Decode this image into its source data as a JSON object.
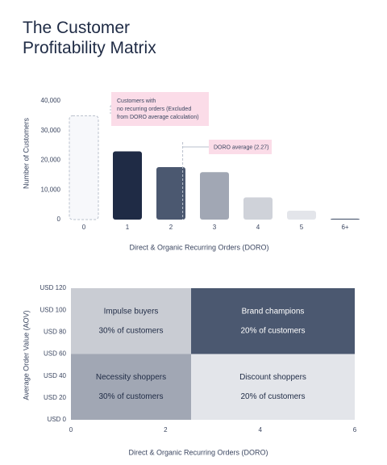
{
  "title": "The Customer Profitability Matrix",
  "chart_data": [
    {
      "type": "bar",
      "categories": [
        "0",
        "1",
        "2",
        "3",
        "4",
        "5",
        "6+"
      ],
      "values": [
        35000,
        23000,
        17700,
        16000,
        7500,
        3000,
        300
      ],
      "colors": [
        "#f7f8fb",
        "#1f2b45",
        "#4b5870",
        "#a1a7b4",
        "#cfd2d9",
        "#e3e5ea",
        "#4b5870"
      ],
      "outlined": [
        0
      ],
      "ylim": [
        0,
        40000
      ],
      "yticks": [
        0,
        {
          "value": 10000,
          "label": "10,000"
        },
        {
          "value": 20000,
          "label": "20,000"
        },
        {
          "value": 30000,
          "label": "30,000"
        },
        {
          "value": 40000,
          "label": "40,000"
        }
      ],
      "xlabel": "Direct & Organic Recurring Orders (DORO)",
      "ylabel": "Number of Customers",
      "annotations": [
        {
          "lines": [
            "Customers with",
            "no recurring orders (Excluded",
            "from DORO average calculation)"
          ]
        },
        {
          "text": "DORO average (2.27)",
          "x": 2.27
        }
      ]
    },
    {
      "type": "quadrant",
      "xlim": [
        0,
        6
      ],
      "xticks": [
        0,
        2,
        4,
        6
      ],
      "ylim": [
        0,
        120
      ],
      "yticks": [
        {
          "value": 0,
          "label": "USD 0"
        },
        {
          "value": 20,
          "label": "USD 20"
        },
        {
          "value": 40,
          "label": "USD 40"
        },
        {
          "value": 60,
          "label": "USD 60"
        },
        {
          "value": 80,
          "label": "USD 80"
        },
        {
          "value": 100,
          "label": "USD 100"
        },
        {
          "value": 120,
          "label": "USD 120"
        }
      ],
      "x_split": 2.54,
      "y_split": 60,
      "xlabel": "Direct & Organic Recurring Orders (DORO)",
      "ylabel": "Average Order Value (AOV)",
      "quadrants": [
        {
          "position": "top-left",
          "name": "Impulse buyers",
          "value": 30,
          "value_label": "30% of customers",
          "color": "#c9ccd3"
        },
        {
          "position": "top-right",
          "name": "Brand champions",
          "value": 20,
          "value_label": "20% of customers",
          "color": "#4b5870"
        },
        {
          "position": "bottom-left",
          "name": "Necessity shoppers",
          "value": 30,
          "value_label": "30% of customers",
          "color": "#a1a7b4"
        },
        {
          "position": "bottom-right",
          "name": "Discount shoppers",
          "value": 20,
          "value_label": "20% of customers",
          "color": "#e3e5ea"
        }
      ]
    }
  ]
}
